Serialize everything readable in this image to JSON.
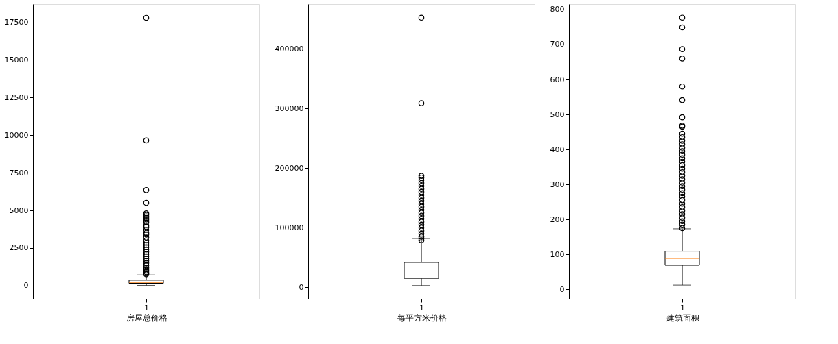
{
  "chart_data": [
    {
      "type": "box",
      "categories": [
        "1"
      ],
      "xlabel": "房屋总价格",
      "ylim": [
        -875,
        18710
      ],
      "yticks": [
        0,
        2500,
        5000,
        7500,
        10000,
        12500,
        15000,
        17500
      ],
      "grid": false,
      "boxes": [
        {
          "low": 10,
          "q1": 150,
          "median": 200,
          "q3": 360,
          "high": 710,
          "outliers": [
            17800,
            9650,
            6350,
            5500,
            4800,
            4700,
            4600,
            4500,
            4400,
            4300,
            4200,
            4000,
            3900,
            3700,
            3500,
            3400,
            3200,
            3000,
            2850,
            2700,
            2550,
            2400,
            2250,
            2100,
            1950,
            1800,
            1650,
            1500,
            1350,
            1200,
            1100,
            1000,
            900,
            800,
            750
          ]
        }
      ]
    },
    {
      "type": "box",
      "categories": [
        "1"
      ],
      "xlabel": "每平方米价格",
      "ylim": [
        -19000,
        474700
      ],
      "yticks": [
        0,
        100000,
        200000,
        300000,
        400000
      ],
      "grid": false,
      "boxes": [
        {
          "low": 3100,
          "q1": 15300,
          "median": 24000,
          "q3": 41900,
          "high": 82000,
          "outliers": [
            452000,
            308600,
            187000,
            184000,
            180000,
            175000,
            170000,
            165000,
            160000,
            155000,
            150000,
            145000,
            140000,
            135000,
            130000,
            125000,
            120000,
            115000,
            110000,
            105000,
            100000,
            95000,
            90000,
            85000,
            82000,
            79000
          ]
        }
      ]
    },
    {
      "type": "box",
      "categories": [
        "1"
      ],
      "xlabel": "建筑面积",
      "ylim": [
        -27,
        815.6
      ],
      "yticks": [
        0,
        100,
        200,
        300,
        400,
        500,
        600,
        700,
        800
      ],
      "grid": false,
      "boxes": [
        {
          "low": 12,
          "q1": 69,
          "median": 88,
          "q3": 109,
          "high": 173,
          "outliers": [
            777,
            749,
            687,
            660,
            580,
            541,
            492,
            468,
            465,
            445,
            435,
            425,
            415,
            405,
            395,
            385,
            375,
            365,
            355,
            345,
            335,
            325,
            315,
            305,
            295,
            285,
            275,
            265,
            255,
            245,
            235,
            225,
            215,
            205,
            195,
            185,
            175
          ]
        }
      ]
    }
  ]
}
